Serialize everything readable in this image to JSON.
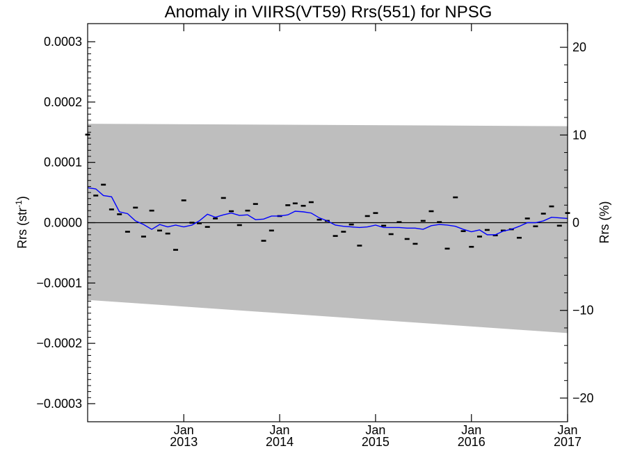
{
  "chart_data": {
    "type": "line",
    "title": "Anomaly in VIIRS(VT59) Rrs(551) for NPSG",
    "ylabel": "Rrs (str",
    "ylabel_sup": "-1",
    "ylabel_close": ")",
    "y2label": "Rrs (%)",
    "xlim": [
      "2012-01-01",
      "2017-01-01"
    ],
    "ylim": [
      -0.00033,
      0.00033
    ],
    "y2lim": [
      -22.7,
      22.7
    ],
    "y_ticks": [
      {
        "value": 0.0003,
        "label": "0.0003"
      },
      {
        "value": 0.0002,
        "label": "0.0002"
      },
      {
        "value": 0.0001,
        "label": "0.0001"
      },
      {
        "value": 0,
        "label": "0.0000"
      },
      {
        "value": -0.0001,
        "label": "−0.0001"
      },
      {
        "value": -0.0002,
        "label": "−0.0002"
      },
      {
        "value": -0.0003,
        "label": "−0.0003"
      }
    ],
    "y2_ticks": [
      {
        "value": 20,
        "label": "20"
      },
      {
        "value": 10,
        "label": "10"
      },
      {
        "value": 0,
        "label": "0"
      },
      {
        "value": -10,
        "label": "−10"
      },
      {
        "value": -20,
        "label": "−20"
      }
    ],
    "x_ticks": [
      {
        "date": "2013-01-01",
        "month": "Jan",
        "year": "2013"
      },
      {
        "date": "2014-01-01",
        "month": "Jan",
        "year": "2014"
      },
      {
        "date": "2015-01-01",
        "month": "Jan",
        "year": "2015"
      },
      {
        "date": "2016-01-01",
        "month": "Jan",
        "year": "2016"
      },
      {
        "date": "2017-01-01",
        "month": "Jan",
        "year": "2017"
      }
    ],
    "band": {
      "x": [
        "2012-01-01",
        "2017-01-01"
      ],
      "upper": [
        0.000164,
        0.00016
      ],
      "lower": [
        -0.000128,
        -0.000183
      ]
    },
    "zero_line": 0,
    "series": [
      {
        "color": "#000000",
        "marker": "dash",
        "x": [
          "2012-01-01",
          "2012-02-01",
          "2012-03-01",
          "2012-04-01",
          "2012-05-01",
          "2012-06-01",
          "2012-07-01",
          "2012-08-01",
          "2012-09-01",
          "2012-10-01",
          "2012-11-01",
          "2012-12-01",
          "2013-01-01",
          "2013-02-01",
          "2013-03-01",
          "2013-04-01",
          "2013-05-01",
          "2013-06-01",
          "2013-07-01",
          "2013-08-01",
          "2013-09-01",
          "2013-10-01",
          "2013-11-01",
          "2013-12-01",
          "2014-01-01",
          "2014-02-01",
          "2014-03-01",
          "2014-04-01",
          "2014-05-01",
          "2014-06-01",
          "2014-07-01",
          "2014-08-01",
          "2014-09-01",
          "2014-10-01",
          "2014-11-01",
          "2014-12-01",
          "2015-01-01",
          "2015-02-01",
          "2015-03-01",
          "2015-04-01",
          "2015-05-01",
          "2015-06-01",
          "2015-07-01",
          "2015-08-01",
          "2015-09-01",
          "2015-10-01",
          "2015-11-01",
          "2015-12-01",
          "2016-01-01",
          "2016-02-01",
          "2016-03-01",
          "2016-04-01",
          "2016-05-01",
          "2016-06-01",
          "2016-07-01",
          "2016-08-01",
          "2016-09-01",
          "2016-10-01",
          "2016-11-01",
          "2016-12-01",
          "2017-01-01"
        ],
        "y": [
          0.000146,
          4.5e-05,
          6.3e-05,
          2.2e-05,
          1.4e-05,
          -1.5e-05,
          2.5e-05,
          -2.3e-05,
          2e-05,
          -1.3e-05,
          -1.8e-05,
          -4.5e-05,
          3.7e-05,
          0.0,
          -1e-06,
          -7e-06,
          7e-06,
          4.1e-05,
          1.9e-05,
          -4e-06,
          2e-05,
          3.1e-05,
          -3e-05,
          -1.3e-05,
          1.1e-05,
          2.9e-05,
          3.2e-05,
          2.8e-05,
          3.4e-05,
          5e-06,
          3e-06,
          -2.2e-05,
          -1.5e-05,
          -3e-06,
          -3.8e-05,
          1.1e-05,
          1.6e-05,
          -5e-06,
          -1.9e-05,
          1e-06,
          -2.7e-05,
          -3.5e-05,
          3e-06,
          1.9e-05,
          1e-06,
          -4.3e-05,
          4.2e-05,
          -1.4e-05,
          -4e-05,
          -2.3e-05,
          -1.2e-05,
          -2.1e-05,
          -1.3e-05,
          -1.1e-05,
          -2.5e-05,
          7e-06,
          -6e-06,
          1.5e-05,
          2.7e-05,
          -5e-06,
          1.6e-05
        ]
      },
      {
        "color": "#0000ff",
        "marker": "line",
        "x": [
          "2012-01-01",
          "2012-02-01",
          "2012-03-01",
          "2012-04-01",
          "2012-05-01",
          "2012-06-01",
          "2012-07-01",
          "2012-08-01",
          "2012-09-01",
          "2012-10-01",
          "2012-11-01",
          "2012-12-01",
          "2013-01-01",
          "2013-02-01",
          "2013-03-01",
          "2013-04-01",
          "2013-05-01",
          "2013-06-01",
          "2013-07-01",
          "2013-08-01",
          "2013-09-01",
          "2013-10-01",
          "2013-11-01",
          "2013-12-01",
          "2014-01-01",
          "2014-02-01",
          "2014-03-01",
          "2014-04-01",
          "2014-05-01",
          "2014-06-01",
          "2014-07-01",
          "2014-08-01",
          "2014-09-01",
          "2014-10-01",
          "2014-11-01",
          "2014-12-01",
          "2015-01-01",
          "2015-02-01",
          "2015-03-01",
          "2015-04-01",
          "2015-05-01",
          "2015-06-01",
          "2015-07-01",
          "2015-08-01",
          "2015-09-01",
          "2015-10-01",
          "2015-11-01",
          "2015-12-01",
          "2016-01-01",
          "2016-02-01",
          "2016-03-01",
          "2016-04-01",
          "2016-05-01",
          "2016-06-01",
          "2016-07-01",
          "2016-08-01",
          "2016-09-01",
          "2016-10-01",
          "2016-11-01",
          "2016-12-01",
          "2017-01-01"
        ],
        "y": [
          5.8e-05,
          5.6e-05,
          4.5e-05,
          4.3e-05,
          1.8e-05,
          1.5e-05,
          3e-06,
          -3e-06,
          -1.1e-05,
          -3e-06,
          -7e-06,
          -4e-06,
          -7e-06,
          -4e-06,
          3e-06,
          1.4e-05,
          9e-06,
          1.3e-05,
          1.6e-05,
          1.2e-05,
          1.3e-05,
          5e-06,
          6e-06,
          1.1e-05,
          1.1e-05,
          1.3e-05,
          1.9e-05,
          1.8e-05,
          1.6e-05,
          8e-06,
          3e-06,
          -4e-06,
          -6e-06,
          -7e-06,
          -8e-06,
          -7e-06,
          -4e-06,
          -8e-06,
          -8e-06,
          -8e-06,
          -9e-06,
          -9e-06,
          -1.1e-05,
          -5e-06,
          -3e-06,
          -4e-06,
          -6e-06,
          -1.1e-05,
          -1.5e-05,
          -1.2e-05,
          -2e-05,
          -2e-05,
          -1.4e-05,
          -1.1e-05,
          -6e-06,
          0.0,
          0.0,
          3e-06,
          9e-06,
          8e-06,
          7e-06
        ]
      }
    ]
  }
}
